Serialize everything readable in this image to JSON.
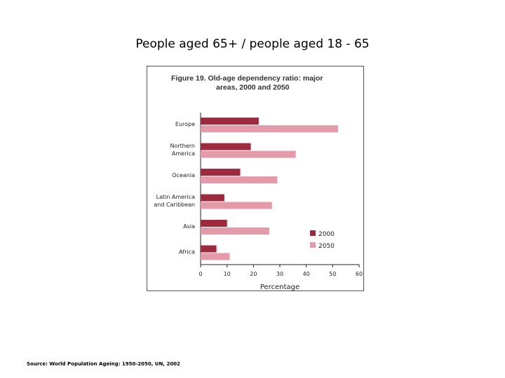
{
  "slide": {
    "title": "People aged 65+ / people aged 18 - 65",
    "source": "Source: World Population Ageing: 1950-2050, UN, 2002"
  },
  "chart_data": {
    "type": "bar",
    "orientation": "horizontal",
    "title_line1": "Figure 19.  Old-age dependency ratio: major",
    "title_line2": "areas, 2000 and 2050",
    "categories": [
      [
        "Europe"
      ],
      [
        "Northern",
        "America"
      ],
      [
        "Oceania"
      ],
      [
        "Latin America",
        "and Caribbean"
      ],
      [
        "Asia"
      ],
      [
        "Africa"
      ]
    ],
    "series": [
      {
        "name": "2000",
        "color": "#9e2a3e",
        "values": [
          22,
          19,
          15,
          9,
          10,
          6
        ]
      },
      {
        "name": "2050",
        "color": "#e49aa8",
        "values": [
          52,
          36,
          29,
          27,
          26,
          11
        ]
      }
    ],
    "xlabel": "Percentage",
    "xlim": [
      0,
      60
    ],
    "xticks": [
      0,
      10,
      20,
      30,
      40,
      50,
      60
    ],
    "grid": false,
    "legend_position": "bottom-right"
  }
}
